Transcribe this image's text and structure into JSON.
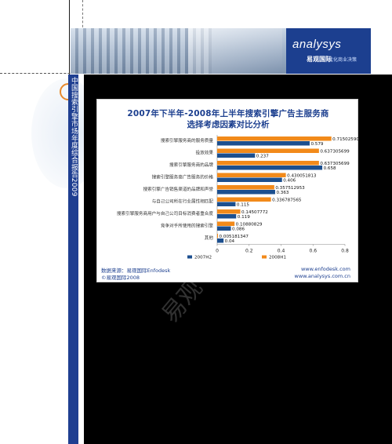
{
  "header": {
    "logo_word": "analysys",
    "logo_cn": "易观国际",
    "logo_tagline": "优化商业决策"
  },
  "side_strip": {
    "text": "中国搜索引擎市场年度综合报告2009"
  },
  "watermark": "易观",
  "chart_data": {
    "type": "bar",
    "orientation": "horizontal",
    "title": "2007年下半年-2008年上半年搜索引擎广告主服务商",
    "subtitle": "选择考虑因素对比分析",
    "categories": [
      "搜索引擎服务商的服务质量",
      "投放效果",
      "搜索引擎服务商的品牌",
      "搜索引擎服务商广告服务的价格",
      "搜索引擎广告销售渠道的品牌和声誉",
      "与自己公司所在行业属性相匹配",
      "搜索引擎服务商用户与自己公司目标消费者重合度",
      "竞争对手所使用的搜索引擎",
      "其他"
    ],
    "series": [
      {
        "name": "2007H2",
        "color": "#1c4f8f",
        "values": [
          0.579,
          0.237,
          0.658,
          0.406,
          0.363,
          0.115,
          0.119,
          0.086,
          0.04
        ],
        "labels": [
          "0.579",
          "0.237",
          "0.658",
          "0.406",
          "0.363",
          "0.115",
          "0.119",
          "0.086",
          "0.04"
        ]
      },
      {
        "name": "2008H1",
        "color": "#f28a1a",
        "values": [
          0.715025907,
          0.637305699,
          0.637305699,
          0.430051813,
          0.357512953,
          0.336787565,
          0.14507772,
          0.10880829,
          0.005181347
        ],
        "labels": [
          "0.715025907",
          "0.637305699",
          "0.637305699",
          "0.430051813",
          "0.357512953",
          "0.336787565",
          "0.14507772",
          "0.10880829",
          "0.005181347"
        ]
      }
    ],
    "xlim": [
      0,
      0.8
    ],
    "xticks": [
      "0",
      "0.2",
      "0.4",
      "0.6",
      "0.8"
    ],
    "legend_position": "bottom"
  },
  "source": {
    "line1": "数据来源：易观国际Enfodesk",
    "line2": "©易观国际2008",
    "url1": "www.enfodesk.com",
    "url2": "www.analysys.com.cn"
  }
}
